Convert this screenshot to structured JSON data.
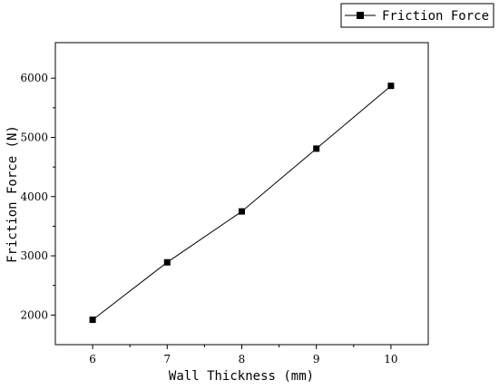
{
  "chart_data": {
    "type": "line",
    "title": "",
    "xlabel": "Wall Thickness (mm)",
    "ylabel": "Friction Force (N)",
    "xlim": [
      5.5,
      10.5
    ],
    "ylim": [
      1500,
      6600
    ],
    "x_ticks": [
      6,
      7,
      8,
      9,
      10
    ],
    "y_ticks": [
      2000,
      3000,
      4000,
      5000,
      6000
    ],
    "x_tick_labels": [
      "6",
      "7",
      "8",
      "9",
      "10"
    ],
    "y_tick_labels": [
      "2000",
      "3000",
      "4000",
      "5000",
      "6000"
    ],
    "grid": false,
    "legend_position": "top-right, outside plot",
    "series": [
      {
        "name": "Friction Force",
        "marker": "square",
        "color": "#000000",
        "x": [
          6,
          7,
          8,
          9,
          10
        ],
        "y": [
          1920,
          2890,
          3750,
          4810,
          5870
        ]
      }
    ]
  }
}
